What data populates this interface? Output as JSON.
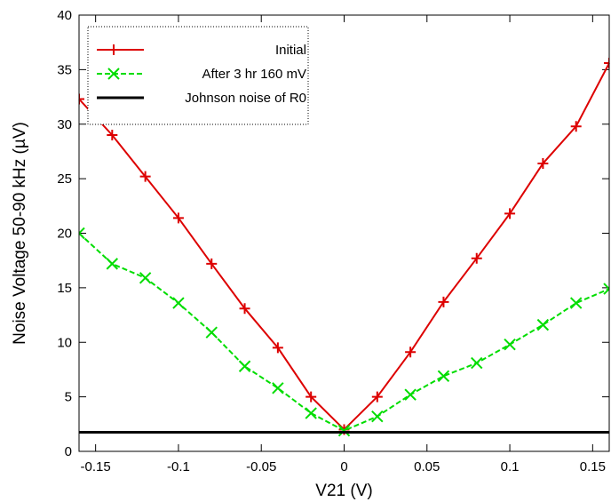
{
  "chart_data": {
    "type": "line",
    "title": "",
    "xlabel": "V21 (V)",
    "ylabel": "Noise Voltage 50-90 kHz (µV)",
    "xlim": [
      -0.16,
      0.16
    ],
    "ylim": [
      0,
      40
    ],
    "grid": false,
    "legend_position": "top-left",
    "x_ticks": [
      -0.15,
      -0.1,
      -0.05,
      0,
      0.05,
      0.1,
      0.15
    ],
    "x_tick_labels": [
      "-0.15",
      "-0.1",
      "-0.05",
      "0",
      "0.05",
      "0.1",
      "0.15"
    ],
    "y_ticks": [
      0,
      5,
      10,
      15,
      20,
      25,
      30,
      35,
      40
    ],
    "y_tick_labels": [
      "0",
      "5",
      "10",
      "15",
      "20",
      "25",
      "30",
      "35",
      "40"
    ],
    "series": [
      {
        "name": "Initial",
        "color": "#dd0000",
        "marker": "plus",
        "dash": "solid",
        "x": [
          -0.16,
          -0.14,
          -0.12,
          -0.1,
          -0.08,
          -0.06,
          -0.04,
          -0.02,
          0.0,
          0.02,
          0.04,
          0.06,
          0.08,
          0.1,
          0.12,
          0.14,
          0.16
        ],
        "y": [
          32.3,
          29.0,
          25.2,
          21.4,
          17.2,
          13.1,
          9.5,
          5.0,
          2.0,
          5.0,
          9.1,
          13.7,
          17.7,
          21.8,
          26.4,
          29.8,
          35.6
        ]
      },
      {
        "name": "After 3 hr 160 mV",
        "color": "#00dd00",
        "marker": "cross",
        "dash": "dashed",
        "x": [
          -0.16,
          -0.14,
          -0.12,
          -0.1,
          -0.08,
          -0.06,
          -0.04,
          -0.02,
          0.0,
          0.02,
          0.04,
          0.06,
          0.08,
          0.1,
          0.12,
          0.14,
          0.16
        ],
        "y": [
          20.0,
          17.2,
          15.9,
          13.6,
          10.9,
          7.8,
          5.8,
          3.5,
          1.9,
          3.2,
          5.2,
          6.9,
          8.1,
          9.8,
          11.6,
          13.6,
          14.9
        ]
      },
      {
        "name": "Johnson noise of R0",
        "color": "#000000",
        "marker": "none",
        "dash": "solid",
        "x": [
          -0.16,
          0.16
        ],
        "y": [
          1.75,
          1.75
        ]
      }
    ]
  }
}
